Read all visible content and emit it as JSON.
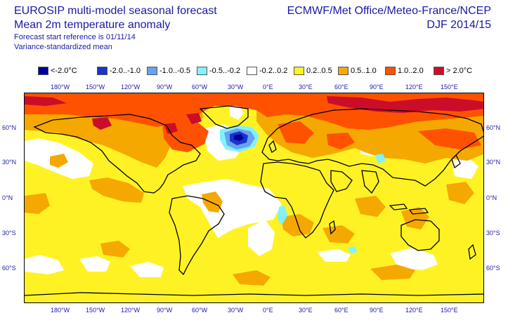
{
  "header": {
    "title_line1": "EUROSIP multi-model seasonal forecast",
    "title_line2": "Mean 2m temperature anomaly",
    "line3": "Forecast start reference is 01/11/14",
    "line4": "Variance-standardized mean",
    "right_line1": "ECMWF/Met Office/Meteo-France/NCEP",
    "right_line2": "DJF 2014/15"
  },
  "legend": [
    {
      "label": "<-2.0°C",
      "color": "#000099"
    },
    {
      "label": "-2.0..-1.0",
      "color": "#1a33cc"
    },
    {
      "label": "-1.0..-0.5",
      "color": "#66a3f2"
    },
    {
      "label": "-0.5..-0.2",
      "color": "#80f2ff"
    },
    {
      "label": "-0.2..0.2",
      "color": "#ffffff"
    },
    {
      "label": "0.2..0.5",
      "color": "#fff224"
    },
    {
      "label": "0.5..1.0",
      "color": "#f5a800"
    },
    {
      "label": "1.0..2.0",
      "color": "#ff5200"
    },
    {
      "label": "> 2.0°C",
      "color": "#cc0d29"
    }
  ],
  "longitude_labels": [
    "180°W",
    "150°W",
    "120°W",
    "90°W",
    "60°W",
    "30°W",
    "0°E",
    "30°E",
    "60°E",
    "90°E",
    "120°E",
    "150°E"
  ],
  "latitude_labels": [
    "60°N",
    "30°N",
    "0°N",
    "30°S",
    "60°S"
  ]
}
